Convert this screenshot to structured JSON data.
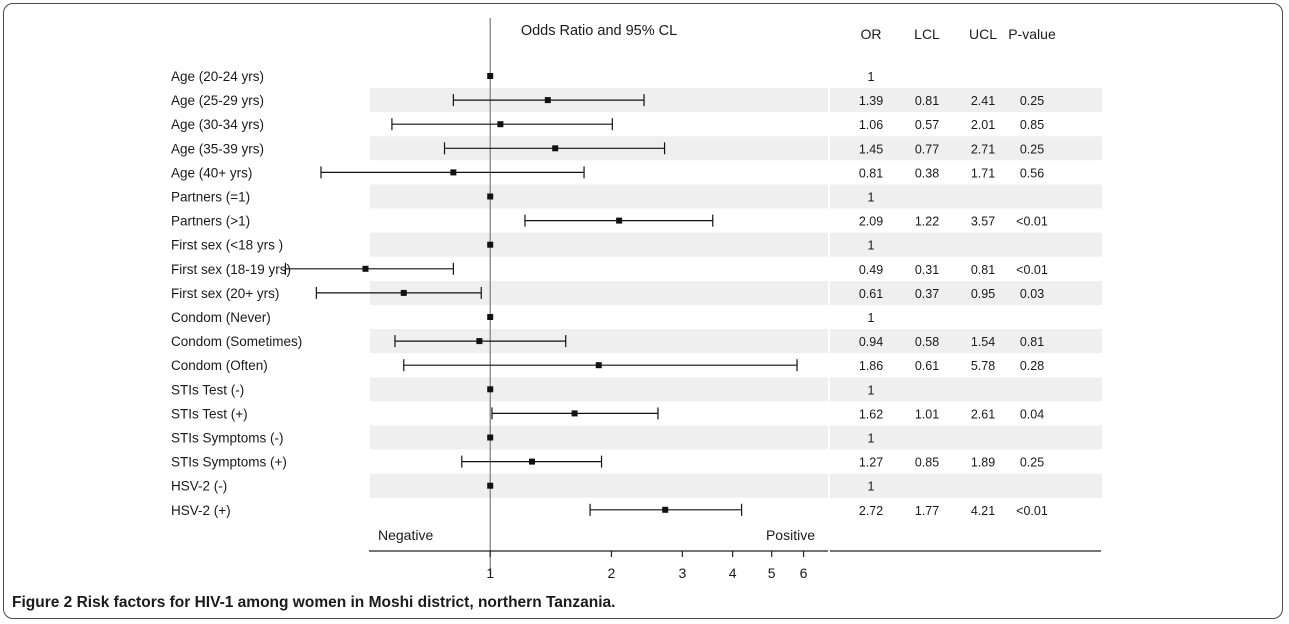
{
  "chart_data": {
    "type": "forest",
    "title": "Odds Ratio and 95% CL",
    "columns": [
      "OR",
      "LCL",
      "UCL",
      "P-value"
    ],
    "x_scale": "log",
    "xlim": [
      0.5,
      6.9
    ],
    "reference_line": 1,
    "x_ticks": [
      1,
      2,
      3,
      4,
      5,
      6
    ],
    "x_tick_labels": [
      "1",
      "2",
      "3",
      "4",
      "5",
      "6"
    ],
    "negative_label": "Negative",
    "positive_label": "Positive",
    "rows": [
      {
        "label": "Age (20-24 yrs)",
        "or": 1,
        "lcl": null,
        "ucl": null,
        "or_text": "1",
        "lcl_text": "",
        "ucl_text": "",
        "p_text": ""
      },
      {
        "label": "Age (25-29 yrs)",
        "or": 1.39,
        "lcl": 0.81,
        "ucl": 2.41,
        "or_text": "1.39",
        "lcl_text": "0.81",
        "ucl_text": "2.41",
        "p_text": "0.25"
      },
      {
        "label": "Age (30-34 yrs)",
        "or": 1.06,
        "lcl": 0.57,
        "ucl": 2.01,
        "or_text": "1.06",
        "lcl_text": "0.57",
        "ucl_text": "2.01",
        "p_text": "0.85"
      },
      {
        "label": "Age (35-39 yrs)",
        "or": 1.45,
        "lcl": 0.77,
        "ucl": 2.71,
        "or_text": "1.45",
        "lcl_text": "0.77",
        "ucl_text": "2.71",
        "p_text": "0.25"
      },
      {
        "label": "Age (40+   yrs)",
        "or": 0.81,
        "lcl": 0.38,
        "ucl": 1.71,
        "or_text": "0.81",
        "lcl_text": "0.38",
        "ucl_text": "1.71",
        "p_text": "0.56"
      },
      {
        "label": "Partners (=1)",
        "or": 1,
        "lcl": null,
        "ucl": null,
        "or_text": "1",
        "lcl_text": "",
        "ucl_text": "",
        "p_text": ""
      },
      {
        "label": "Partners (>1)",
        "or": 2.09,
        "lcl": 1.22,
        "ucl": 3.57,
        "or_text": "2.09",
        "lcl_text": "1.22",
        "ucl_text": "3.57",
        "p_text": "<0.01"
      },
      {
        "label": "First sex (<18 yrs )",
        "or": 1,
        "lcl": null,
        "ucl": null,
        "or_text": "1",
        "lcl_text": "",
        "ucl_text": "",
        "p_text": ""
      },
      {
        "label": "First sex (18-19 yrs)",
        "or": 0.49,
        "lcl": 0.31,
        "ucl": 0.81,
        "or_text": "0.49",
        "lcl_text": "0.31",
        "ucl_text": "0.81",
        "p_text": "<0.01"
      },
      {
        "label": "First sex (20+ yrs)",
        "or": 0.61,
        "lcl": 0.37,
        "ucl": 0.95,
        "or_text": "0.61",
        "lcl_text": "0.37",
        "ucl_text": "0.95",
        "p_text": "0.03"
      },
      {
        "label": "Condom (Never)",
        "or": 1,
        "lcl": null,
        "ucl": null,
        "or_text": "1",
        "lcl_text": "",
        "ucl_text": "",
        "p_text": ""
      },
      {
        "label": "Condom (Sometimes)",
        "or": 0.94,
        "lcl": 0.58,
        "ucl": 1.54,
        "or_text": "0.94",
        "lcl_text": "0.58",
        "ucl_text": "1.54",
        "p_text": "0.81"
      },
      {
        "label": "Condom (Often)",
        "or": 1.86,
        "lcl": 0.61,
        "ucl": 5.78,
        "or_text": "1.86",
        "lcl_text": "0.61",
        "ucl_text": "5.78",
        "p_text": "0.28"
      },
      {
        "label": "STIs Test (-)",
        "or": 1,
        "lcl": null,
        "ucl": null,
        "or_text": "1",
        "lcl_text": "",
        "ucl_text": "",
        "p_text": ""
      },
      {
        "label": "STIs Test (+)",
        "or": 1.62,
        "lcl": 1.01,
        "ucl": 2.61,
        "or_text": "1.62",
        "lcl_text": "1.01",
        "ucl_text": "2.61",
        "p_text": "0.04"
      },
      {
        "label": "STIs Symptoms (-)",
        "or": 1,
        "lcl": null,
        "ucl": null,
        "or_text": "1",
        "lcl_text": "",
        "ucl_text": "",
        "p_text": ""
      },
      {
        "label": "STIs Symptoms (+)",
        "or": 1.27,
        "lcl": 0.85,
        "ucl": 1.89,
        "or_text": "1.27",
        "lcl_text": "0.85",
        "ucl_text": "1.89",
        "p_text": "0.25"
      },
      {
        "label": "HSV-2 (-)",
        "or": 1,
        "lcl": null,
        "ucl": null,
        "or_text": "1",
        "lcl_text": "",
        "ucl_text": "",
        "p_text": ""
      },
      {
        "label": "HSV-2 (+)",
        "or": 2.72,
        "lcl": 1.77,
        "ucl": 4.21,
        "or_text": "2.72",
        "lcl_text": "1.77",
        "ucl_text": "4.21",
        "p_text": "<0.01"
      }
    ]
  },
  "caption": {
    "label": "Figure 2",
    "text": "Risk factors for HIV-1 among women in Moshi district, northern Tanzania."
  },
  "colors": {
    "stripe": "#efefef",
    "reference_line": "#7a7a7a",
    "marker": "#111111",
    "text": "#1a1a1a"
  }
}
